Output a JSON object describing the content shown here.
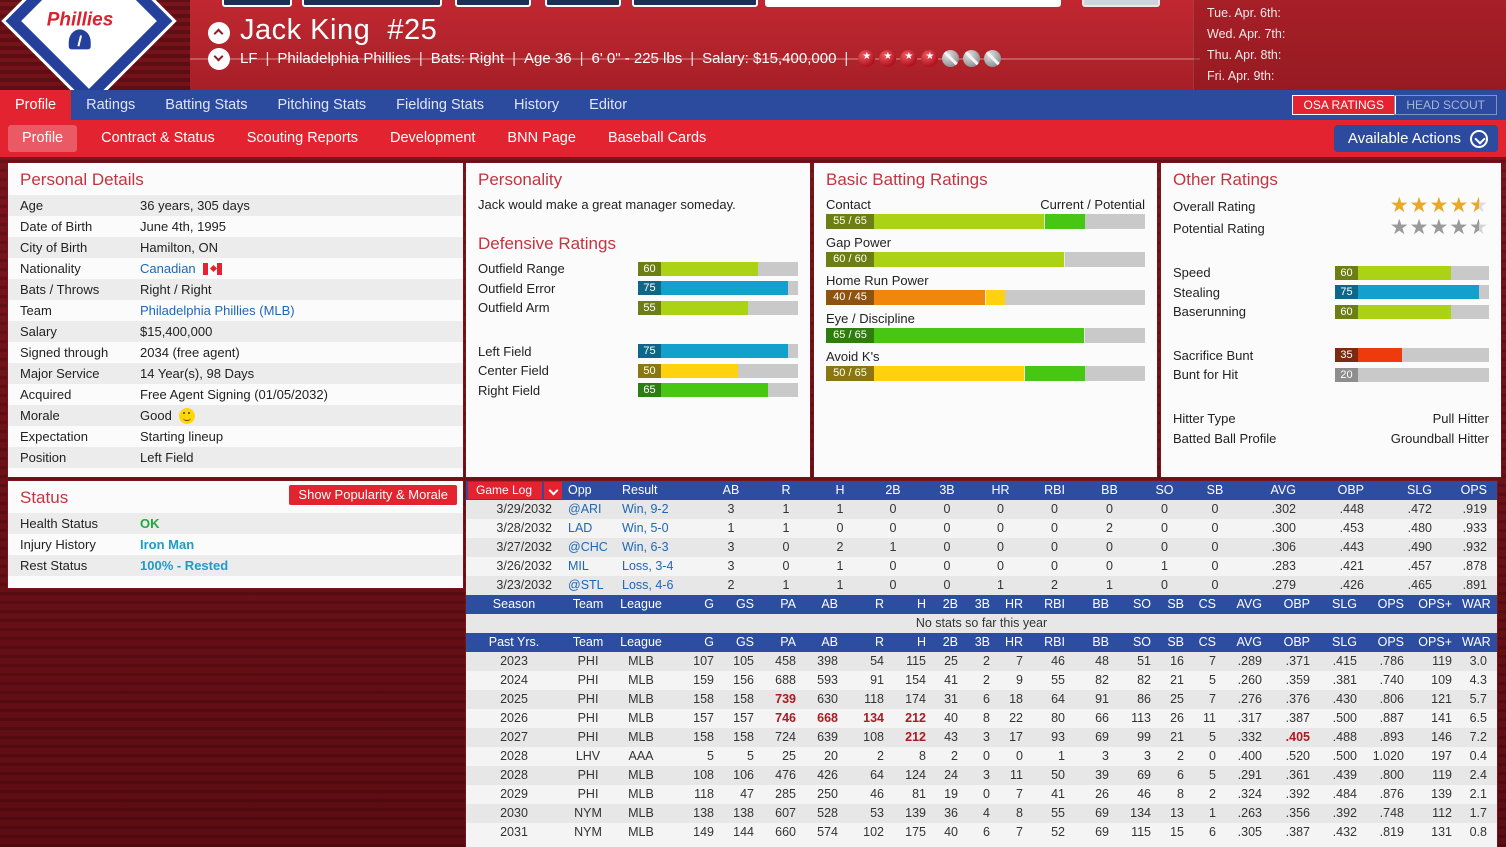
{
  "colors": {
    "accent_red": "#e32330",
    "nav_blue": "#2c4a9e",
    "table_header_blue": "#2c4da0",
    "link_blue": "#1e66b8",
    "highlight_red": "#a81c22",
    "star_gold": "#e9a825",
    "star_gray": "#9a9a9a"
  },
  "header": {
    "player_name": "Jack King",
    "jersey_number": "#25",
    "info_parts": [
      "LF",
      "Philadelphia Phillies",
      "Bats: Right",
      "Age 36",
      "6' 0\" - 225 lbs",
      "Salary: $15,400,000"
    ],
    "stars_filled": 4,
    "stars_empty": 3,
    "schedule": [
      "Tue. Apr. 6th:",
      "Wed. Apr. 7th:",
      "Thu. Apr. 8th:",
      "Fri. Apr. 9th:"
    ]
  },
  "nav": {
    "tabs": [
      "Profile",
      "Ratings",
      "Batting Stats",
      "Pitching Stats",
      "Fielding Stats",
      "History",
      "Editor"
    ],
    "active_tab": "Profile",
    "osa_ratings_label": "OSA RATINGS",
    "head_scout_label": "HEAD SCOUT"
  },
  "subnav": {
    "tabs": [
      "Profile",
      "Contract & Status",
      "Scouting Reports",
      "Development",
      "BNN Page",
      "Baseball Cards"
    ],
    "active_tab": "Profile",
    "available_actions_label": "Available Actions"
  },
  "personal_details": {
    "title": "Personal Details",
    "rows": [
      {
        "label": "Age",
        "value": "36 years, 305 days",
        "style": "plain"
      },
      {
        "label": "Date of Birth",
        "value": "June 4th, 1995",
        "style": "plain"
      },
      {
        "label": "City of Birth",
        "value": "Hamilton, ON",
        "style": "plain"
      },
      {
        "label": "Nationality",
        "value": "Canadian",
        "style": "flag-link"
      },
      {
        "label": "Bats / Throws",
        "value": "Right / Right",
        "style": "plain"
      },
      {
        "label": "Team",
        "value": "Philadelphia Phillies (MLB)",
        "style": "link"
      },
      {
        "label": "Salary",
        "value": "$15,400,000",
        "style": "plain"
      },
      {
        "label": "Signed through",
        "value": "2034 (free agent)",
        "style": "plain"
      },
      {
        "label": "Major Service",
        "value": "14 Year(s), 98 Days",
        "style": "plain"
      },
      {
        "label": "Acquired",
        "value": "Free Agent Signing (01/05/2032)",
        "style": "plain"
      },
      {
        "label": "Morale",
        "value": "Good",
        "style": "smiley"
      },
      {
        "label": "Expectation",
        "value": "Starting lineup",
        "style": "plain"
      },
      {
        "label": "Position",
        "value": "Left Field",
        "style": "plain"
      }
    ]
  },
  "personality": {
    "title": "Personality",
    "text": "Jack would make a great manager someday."
  },
  "defensive_ratings": {
    "title": "Defensive Ratings",
    "groups": [
      [
        {
          "label": "Outfield Range",
          "value": 60,
          "fill": "#abd214",
          "label_bg": "#6d7f14"
        },
        {
          "label": "Outfield Error",
          "value": 75,
          "fill": "#14a0cc",
          "label_bg": "#0d6888"
        },
        {
          "label": "Outfield Arm",
          "value": 55,
          "fill": "#abd214",
          "label_bg": "#6d7f14"
        }
      ],
      [
        {
          "label": "Left Field",
          "value": 75,
          "fill": "#14a0cc",
          "label_bg": "#0d6888"
        },
        {
          "label": "Center Field",
          "value": 50,
          "fill": "#ffd20d",
          "label_bg": "#8a7712"
        },
        {
          "label": "Right Field",
          "value": 65,
          "fill": "#47c613",
          "label_bg": "#2f7d10"
        }
      ]
    ]
  },
  "batting_ratings": {
    "title": "Basic Batting Ratings",
    "scale_note": "Current / Potential",
    "items": [
      {
        "label": "Contact",
        "display": "55 / 65",
        "current": 55,
        "potential": 65,
        "cur_fill": "#abd214",
        "pot_fill": "#47c613",
        "label_bg": "#6d7f14"
      },
      {
        "label": "Gap Power",
        "display": "60 / 60",
        "current": 60,
        "potential": 60,
        "cur_fill": "#abd214",
        "pot_fill": "#abd214",
        "label_bg": "#6d7f14"
      },
      {
        "label": "Home Run Power",
        "display": "40 / 45",
        "current": 40,
        "potential": 45,
        "cur_fill": "#f0860c",
        "pot_fill": "#ffd20d",
        "label_bg": "#8c5410"
      },
      {
        "label": "Eye / Discipline",
        "display": "65 / 65",
        "current": 65,
        "potential": 65,
        "cur_fill": "#47c613",
        "pot_fill": "#47c613",
        "label_bg": "#2f7d10"
      },
      {
        "label": "Avoid K's",
        "display": "50 / 65",
        "current": 50,
        "potential": 65,
        "cur_fill": "#ffd20d",
        "pot_fill": "#47c613",
        "label_bg": "#8a7712"
      }
    ]
  },
  "other_ratings": {
    "title": "Other Ratings",
    "overall_label": "Overall Rating",
    "overall_stars": 4.5,
    "potential_label": "Potential Rating",
    "potential_stars": 4.5,
    "groups": [
      [
        {
          "label": "Speed",
          "value": 60,
          "fill": "#abd214",
          "label_bg": "#6d7f14"
        },
        {
          "label": "Stealing",
          "value": 75,
          "fill": "#14a0cc",
          "label_bg": "#0d6888"
        },
        {
          "label": "Baserunning",
          "value": 60,
          "fill": "#abd214",
          "label_bg": "#6d7f14"
        }
      ],
      [
        {
          "label": "Sacrifice Bunt",
          "value": 35,
          "fill": "#ee3b0e",
          "label_bg": "#7c2a10"
        },
        {
          "label": "Bunt for Hit",
          "value": 20,
          "fill": "",
          "label_bg": "#8e8e8e"
        }
      ]
    ],
    "info": [
      {
        "label": "Hitter Type",
        "value": "Pull Hitter"
      },
      {
        "label": "Batted Ball Profile",
        "value": "Groundball Hitter"
      }
    ]
  },
  "status": {
    "title": "Status",
    "button_label": "Show Popularity & Morale",
    "rows": [
      {
        "label": "Health Status",
        "value": "OK",
        "style": "green"
      },
      {
        "label": "Injury History",
        "value": "Iron Man",
        "style": "teal"
      },
      {
        "label": "Rest Status",
        "value": "100% - Rested",
        "style": "teal"
      }
    ]
  },
  "chart_data": {
    "type": "table",
    "game_log": {
      "columns": [
        "Game Log",
        "Opp",
        "Result",
        "AB",
        "R",
        "H",
        "2B",
        "3B",
        "HR",
        "RBI",
        "BB",
        "SO",
        "SB",
        "AVG",
        "OBP",
        "SLG",
        "OPS"
      ],
      "rows": [
        [
          "3/29/2032",
          "@ARI",
          "Win, 9-2",
          "3",
          "1",
          "1",
          "0",
          "0",
          "0",
          "0",
          "0",
          "0",
          "0",
          ".302",
          ".448",
          ".472",
          ".919"
        ],
        [
          "3/28/2032",
          "LAD",
          "Win, 5-0",
          "1",
          "1",
          "0",
          "0",
          "0",
          "0",
          "0",
          "2",
          "0",
          "0",
          ".300",
          ".453",
          ".480",
          ".933"
        ],
        [
          "3/27/2032",
          "@CHC",
          "Win, 6-3",
          "3",
          "0",
          "2",
          "1",
          "0",
          "0",
          "0",
          "0",
          "0",
          "0",
          ".306",
          ".443",
          ".490",
          ".932"
        ],
        [
          "3/26/2032",
          "MIL",
          "Loss, 3-4",
          "3",
          "0",
          "1",
          "0",
          "0",
          "0",
          "0",
          "0",
          "1",
          "0",
          ".283",
          ".421",
          ".457",
          ".878"
        ],
        [
          "3/23/2032",
          "@STL",
          "Loss, 4-6",
          "2",
          "1",
          "1",
          "0",
          "0",
          "1",
          "2",
          "1",
          "0",
          "0",
          ".279",
          ".426",
          ".465",
          ".891"
        ]
      ]
    },
    "season": {
      "columns": [
        "Season",
        "Team",
        "League",
        "G",
        "GS",
        "PA",
        "AB",
        "R",
        "H",
        "2B",
        "3B",
        "HR",
        "RBI",
        "BB",
        "SO",
        "SB",
        "CS",
        "AVG",
        "OBP",
        "SLG",
        "OPS",
        "OPS+",
        "WAR"
      ],
      "no_stats_text": "No stats so far this year"
    },
    "past_years": {
      "columns": [
        "Past Yrs.",
        "Team",
        "League",
        "G",
        "GS",
        "PA",
        "AB",
        "R",
        "H",
        "2B",
        "3B",
        "HR",
        "RBI",
        "BB",
        "SO",
        "SB",
        "CS",
        "AVG",
        "OBP",
        "SLG",
        "OPS",
        "OPS+",
        "WAR"
      ],
      "rows": [
        {
          "cells": [
            "2023",
            "PHI",
            "MLB",
            "107",
            "105",
            "458",
            "398",
            "54",
            "115",
            "25",
            "2",
            "7",
            "46",
            "48",
            "51",
            "16",
            "7",
            ".289",
            ".371",
            ".415",
            ".786",
            "119",
            "3.0"
          ],
          "hl": []
        },
        {
          "cells": [
            "2024",
            "PHI",
            "MLB",
            "159",
            "156",
            "688",
            "593",
            "91",
            "154",
            "41",
            "2",
            "9",
            "55",
            "82",
            "82",
            "21",
            "5",
            ".260",
            ".359",
            ".381",
            ".740",
            "109",
            "4.3"
          ],
          "hl": []
        },
        {
          "cells": [
            "2025",
            "PHI",
            "MLB",
            "158",
            "158",
            "739",
            "630",
            "118",
            "174",
            "31",
            "6",
            "18",
            "64",
            "91",
            "86",
            "25",
            "7",
            ".276",
            ".376",
            ".430",
            ".806",
            "121",
            "5.7"
          ],
          "hl": [
            5
          ]
        },
        {
          "cells": [
            "2026",
            "PHI",
            "MLB",
            "157",
            "157",
            "746",
            "668",
            "134",
            "212",
            "40",
            "8",
            "22",
            "80",
            "66",
            "113",
            "26",
            "11",
            ".317",
            ".387",
            ".500",
            ".887",
            "141",
            "6.5"
          ],
          "hl": [
            5,
            6,
            7,
            8
          ]
        },
        {
          "cells": [
            "2027",
            "PHI",
            "MLB",
            "158",
            "158",
            "724",
            "639",
            "108",
            "212",
            "43",
            "3",
            "17",
            "93",
            "69",
            "99",
            "21",
            "5",
            ".332",
            ".405",
            ".488",
            ".893",
            "146",
            "7.2"
          ],
          "hl": [
            8,
            18
          ]
        },
        {
          "cells": [
            "2028",
            "LHV",
            "AAA",
            "5",
            "5",
            "25",
            "20",
            "2",
            "8",
            "2",
            "0",
            "0",
            "1",
            "3",
            "3",
            "2",
            "0",
            ".400",
            ".520",
            ".500",
            "1.020",
            "197",
            "0.4"
          ],
          "hl": []
        },
        {
          "cells": [
            "2028",
            "PHI",
            "MLB",
            "108",
            "106",
            "476",
            "426",
            "64",
            "124",
            "24",
            "3",
            "11",
            "50",
            "39",
            "69",
            "6",
            "5",
            ".291",
            ".361",
            ".439",
            ".800",
            "119",
            "2.4"
          ],
          "hl": []
        },
        {
          "cells": [
            "2029",
            "PHI",
            "MLB",
            "118",
            "47",
            "285",
            "250",
            "46",
            "81",
            "19",
            "0",
            "7",
            "41",
            "26",
            "46",
            "8",
            "2",
            ".324",
            ".392",
            ".484",
            ".876",
            "139",
            "2.1"
          ],
          "hl": []
        },
        {
          "cells": [
            "2030",
            "NYM",
            "MLB",
            "138",
            "138",
            "607",
            "528",
            "53",
            "139",
            "36",
            "4",
            "8",
            "55",
            "69",
            "134",
            "13",
            "1",
            ".263",
            ".356",
            ".392",
            ".748",
            "112",
            "1.7"
          ],
          "hl": []
        },
        {
          "cells": [
            "2031",
            "NYM",
            "MLB",
            "149",
            "144",
            "660",
            "574",
            "102",
            "175",
            "40",
            "6",
            "7",
            "52",
            "69",
            "115",
            "15",
            "6",
            ".305",
            ".387",
            ".432",
            ".819",
            "131",
            "0.8"
          ],
          "hl": []
        }
      ]
    }
  }
}
